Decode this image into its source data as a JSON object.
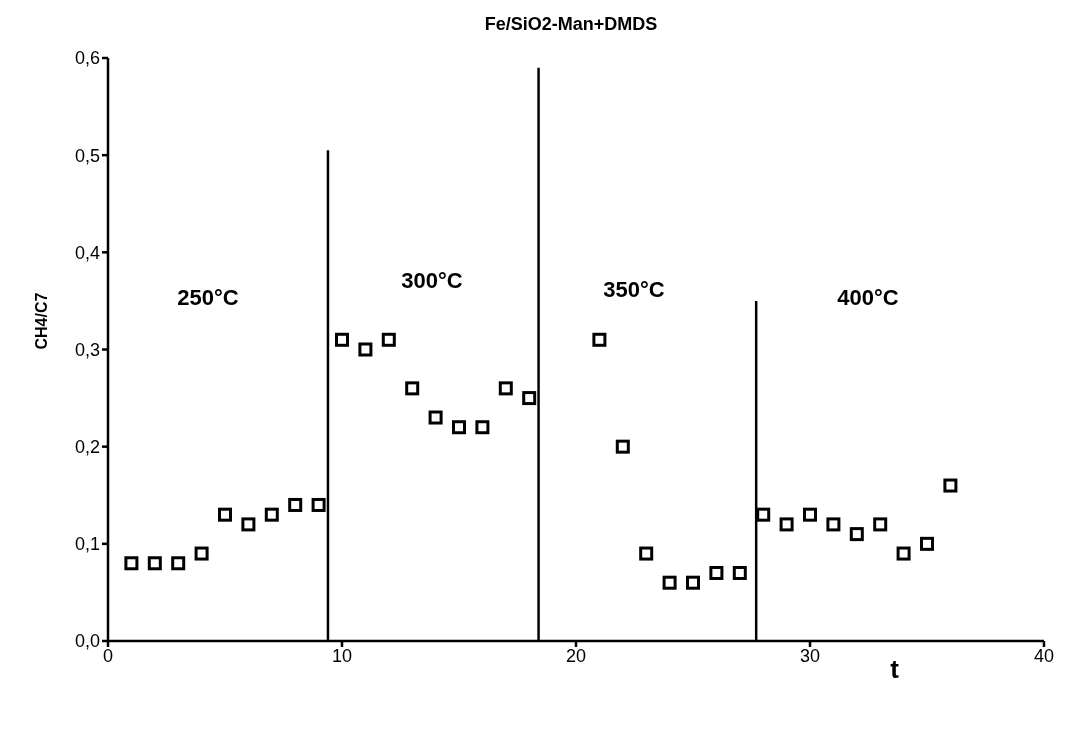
{
  "chart_data": {
    "type": "scatter",
    "title": "Fe/SiO2-Man+DMDS",
    "xlabel": "t",
    "ylabel": "CH4/C7",
    "marker": "square",
    "grid": false,
    "legend": false,
    "xlim": [
      0,
      40
    ],
    "xticks": [
      0,
      10,
      20,
      30,
      40
    ],
    "ylim": [
      0,
      0.6
    ],
    "yticks": [
      {
        "value": 0,
        "label": "0,0"
      },
      {
        "value": 0.1,
        "label": "0,1"
      },
      {
        "value": 0.2,
        "label": "0,2"
      },
      {
        "value": 0.3,
        "label": "0,3"
      },
      {
        "value": 0.4,
        "label": "0,4"
      },
      {
        "value": 0.5,
        "label": "0,5"
      },
      {
        "value": 0.6,
        "label": "0,6"
      }
    ],
    "series": [
      {
        "color": "#000000",
        "x": [
          1,
          2,
          3,
          4,
          5,
          6,
          7,
          8,
          9,
          10,
          11,
          12,
          13,
          14,
          15,
          16,
          17,
          18,
          21,
          22,
          23,
          24,
          25,
          26,
          27,
          28,
          29,
          30,
          31,
          32,
          33,
          34,
          35,
          36
        ],
        "values": [
          0.08,
          0.08,
          0.08,
          0.09,
          0.13,
          0.12,
          0.13,
          0.14,
          0.14,
          0.31,
          0.3,
          0.31,
          0.26,
          0.23,
          0.22,
          0.22,
          0.26,
          0.25,
          0.31,
          0.2,
          0.09,
          0.06,
          0.06,
          0.07,
          0.07,
          0.13,
          0.12,
          0.13,
          0.12,
          0.11,
          0.12,
          0.09,
          0.1,
          0.16
        ]
      },
      {
        "type": "line",
        "color": "#000000",
        "marker": "none",
        "x": [
          9.4,
          9.4
        ],
        "values": [
          0,
          0.505
        ]
      },
      {
        "type": "line",
        "color": "#000000",
        "marker": "none",
        "x": [
          18.4,
          18.4
        ],
        "values": [
          0,
          0.59
        ]
      },
      {
        "type": "line",
        "color": "#000000",
        "marker": "none",
        "x": [
          27.7,
          27.7
        ],
        "values": [
          0,
          0.35
        ]
      }
    ],
    "annotations": [
      "250°C",
      "300°C",
      "350°C",
      "400°C"
    ]
  }
}
